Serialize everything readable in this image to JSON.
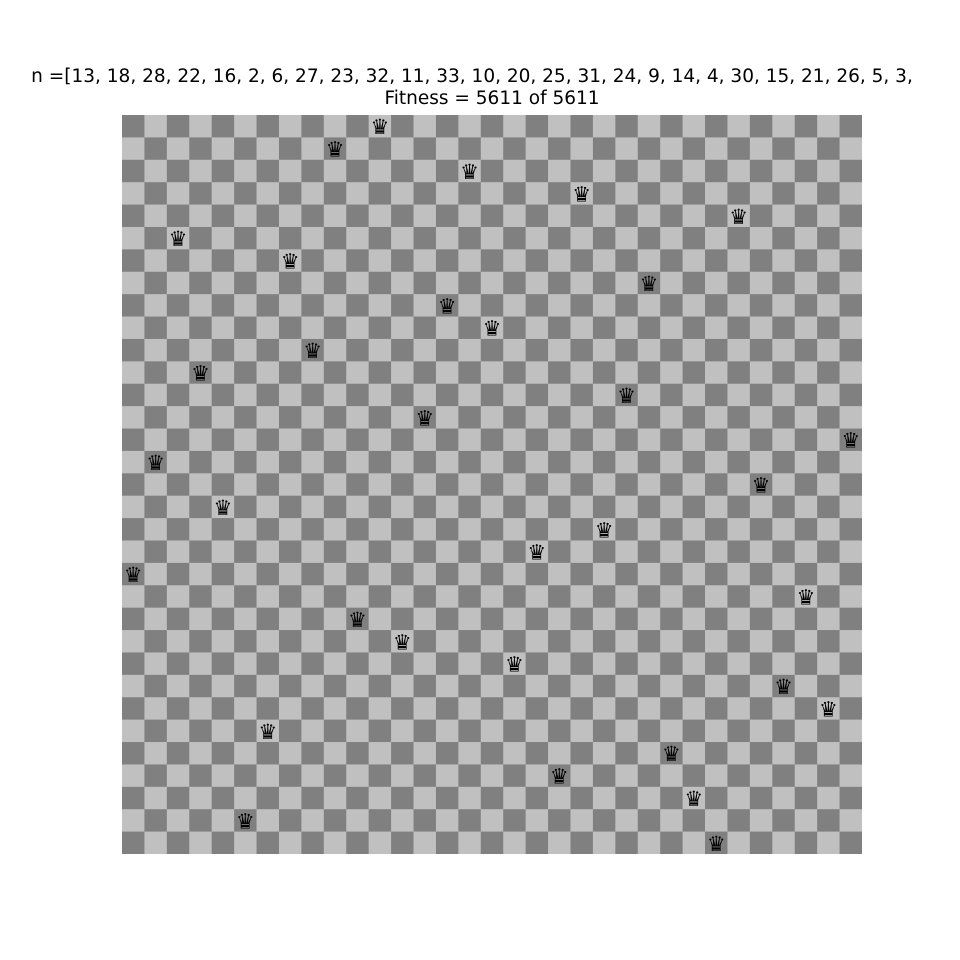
{
  "title_line1": "n =[13, 18, 28, 22, 16, 2, 6, 27, 23, 32, 11, 33, 10, 20, 25, 31, 24, 9, 14, 4, 30, 15, 21, 26, 5, 3,",
  "title_line2": "Fitness = 5611 of 5611",
  "board": {
    "size": 33,
    "colors": {
      "light": "#c0c0c0",
      "dark": "#808080",
      "queen": "#000000"
    },
    "queen_glyph": "♛",
    "queens": [
      {
        "col": 0,
        "row": 20
      },
      {
        "col": 1,
        "row": 15
      },
      {
        "col": 2,
        "row": 5
      },
      {
        "col": 3,
        "row": 11
      },
      {
        "col": 4,
        "row": 17
      },
      {
        "col": 5,
        "row": 31
      },
      {
        "col": 6,
        "row": 27
      },
      {
        "col": 7,
        "row": 6
      },
      {
        "col": 8,
        "row": 10
      },
      {
        "col": 9,
        "row": 1
      },
      {
        "col": 10,
        "row": 22
      },
      {
        "col": 11,
        "row": 0
      },
      {
        "col": 12,
        "row": 23
      },
      {
        "col": 13,
        "row": 13
      },
      {
        "col": 14,
        "row": 8
      },
      {
        "col": 15,
        "row": 2
      },
      {
        "col": 16,
        "row": 9
      },
      {
        "col": 17,
        "row": 24
      },
      {
        "col": 18,
        "row": 19
      },
      {
        "col": 19,
        "row": 29
      },
      {
        "col": 20,
        "row": 3
      },
      {
        "col": 21,
        "row": 18
      },
      {
        "col": 22,
        "row": 12
      },
      {
        "col": 23,
        "row": 7
      },
      {
        "col": 24,
        "row": 28
      },
      {
        "col": 25,
        "row": 30
      },
      {
        "col": 26,
        "row": 32
      },
      {
        "col": 27,
        "row": 4
      },
      {
        "col": 28,
        "row": 16
      },
      {
        "col": 29,
        "row": 25
      },
      {
        "col": 30,
        "row": 21
      },
      {
        "col": 31,
        "row": 26
      },
      {
        "col": 32,
        "row": 14
      }
    ]
  }
}
